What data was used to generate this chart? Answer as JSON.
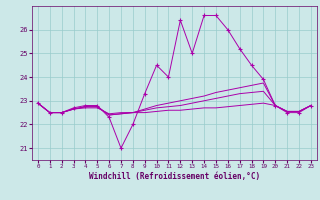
{
  "xlabel": "Windchill (Refroidissement éolien,°C)",
  "x": [
    0,
    1,
    2,
    3,
    4,
    5,
    6,
    7,
    8,
    9,
    10,
    11,
    12,
    13,
    14,
    15,
    16,
    17,
    18,
    19,
    20,
    21,
    22,
    23
  ],
  "y_main": [
    22.9,
    22.5,
    22.5,
    22.7,
    22.8,
    22.8,
    22.3,
    21.0,
    22.0,
    23.3,
    24.5,
    24.0,
    26.4,
    25.0,
    26.6,
    26.6,
    26.0,
    25.2,
    24.5,
    23.9,
    22.8,
    22.5,
    22.5,
    22.8
  ],
  "y_line1": [
    22.9,
    22.5,
    22.5,
    22.65,
    22.7,
    22.7,
    22.45,
    22.5,
    22.5,
    22.5,
    22.55,
    22.6,
    22.6,
    22.65,
    22.7,
    22.7,
    22.75,
    22.8,
    22.85,
    22.9,
    22.8,
    22.55,
    22.55,
    22.8
  ],
  "y_line2": [
    22.9,
    22.5,
    22.5,
    22.65,
    22.75,
    22.75,
    22.4,
    22.45,
    22.5,
    22.6,
    22.7,
    22.75,
    22.8,
    22.9,
    23.0,
    23.1,
    23.2,
    23.3,
    23.35,
    23.4,
    22.8,
    22.55,
    22.55,
    22.8
  ],
  "y_line3": [
    22.9,
    22.5,
    22.5,
    22.65,
    22.75,
    22.75,
    22.4,
    22.45,
    22.5,
    22.65,
    22.8,
    22.9,
    23.0,
    23.1,
    23.2,
    23.35,
    23.45,
    23.55,
    23.65,
    23.75,
    22.8,
    22.55,
    22.55,
    22.8
  ],
  "color_main": "#aa00aa",
  "color_lines": "#cc44cc",
  "bg_color": "#cce8e8",
  "grid_color": "#99cccc",
  "axis_color": "#660066",
  "ylim": [
    20.5,
    27.0
  ],
  "yticks": [
    21,
    22,
    23,
    24,
    25,
    26
  ],
  "xticks": [
    0,
    1,
    2,
    3,
    4,
    5,
    6,
    7,
    8,
    9,
    10,
    11,
    12,
    13,
    14,
    15,
    16,
    17,
    18,
    19,
    20,
    21,
    22,
    23
  ],
  "xlim": [
    -0.5,
    23.5
  ]
}
